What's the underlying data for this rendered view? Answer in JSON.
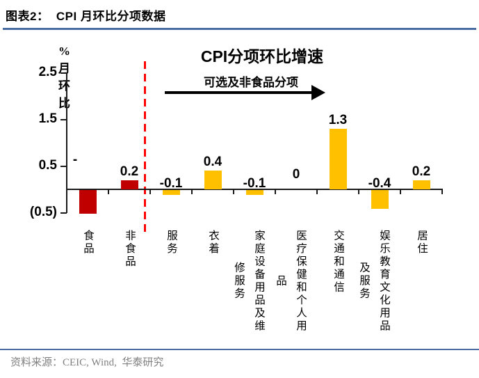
{
  "header": {
    "title": "图表2：  CPI 月环比分项数据"
  },
  "footer": {
    "source": "资料来源：CEIC, Wind,  华泰研究"
  },
  "theme": {
    "rule_blue": "#4a6da4",
    "source_gray": "#808080",
    "axis_color": "#1a1a1a"
  },
  "chart_data": {
    "type": "bar",
    "title": "CPI分项环比增速",
    "ylabel": "% 月环比",
    "xlabel": "",
    "annotation": "可选及非食品分项",
    "ylim": [
      -0.5,
      2.5
    ],
    "grid": false,
    "legend": false,
    "y_ticks": [
      {
        "label": "2.5",
        "value": 2.5
      },
      {
        "label": "1.5",
        "value": 1.5
      },
      {
        "label": "0.5",
        "value": 0.5
      },
      {
        "label": "(0.5)",
        "value": -0.5
      }
    ],
    "colors": {
      "food_group": "#C00000",
      "nonfood_group": "#FFC000",
      "separator": "#FF0000"
    },
    "separator_after_category": "非食品",
    "categories": [
      {
        "name": "食品",
        "label_columns": [
          "食品"
        ],
        "value": -0.5,
        "display": "-",
        "color": "#C00000",
        "label_top": 219,
        "label_dx": -18
      },
      {
        "name": "非食品",
        "label_columns": [
          "非食品"
        ],
        "value": 0.2,
        "display": "0.2",
        "color": "#C00000"
      },
      {
        "name": "服务",
        "label_columns": [
          "服务"
        ],
        "value": -0.1,
        "display": "-0.1",
        "color": "#FFC000"
      },
      {
        "name": "衣着",
        "label_columns": [
          "衣着"
        ],
        "value": 0.4,
        "display": "0.4",
        "color": "#FFC000"
      },
      {
        "name": "家庭设备用品及维修服务",
        "label_columns": [
          "家庭设备用品及维",
          "修服务"
        ],
        "value": -0.1,
        "display": "-0.1",
        "color": "#FFC000"
      },
      {
        "name": "医疗保健和个人用品",
        "label_columns": [
          "医疗保健和个人用",
          "品"
        ],
        "value": 0,
        "display": "0",
        "color": "#FFC000"
      },
      {
        "name": "交通和通信",
        "label_columns": [
          "交通和通信"
        ],
        "value": 1.3,
        "display": "1.3",
        "color": "#FFC000"
      },
      {
        "name": "娱乐教育文化用品及服务",
        "label_columns": [
          "娱乐教育文化用品",
          "及服务"
        ],
        "value": -0.4,
        "display": "-0.4",
        "color": "#FFC000"
      },
      {
        "name": "居住",
        "label_columns": [
          "居住"
        ],
        "value": 0.2,
        "display": "0.2",
        "color": "#FFC000"
      }
    ]
  }
}
